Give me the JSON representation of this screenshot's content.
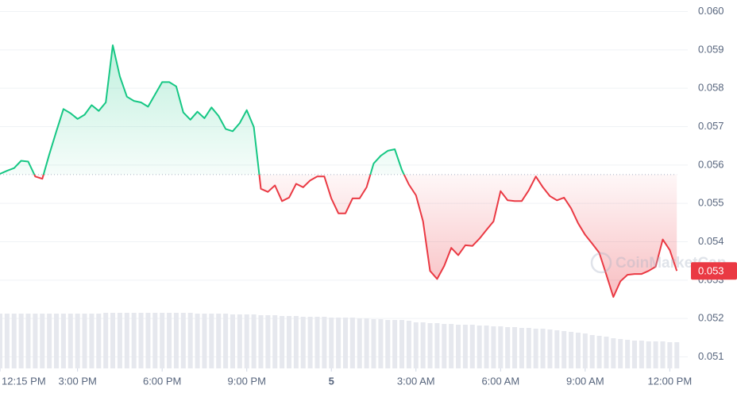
{
  "chart_data": {
    "type": "line",
    "x": [
      12.25,
      12.5,
      12.75,
      13,
      13.25,
      13.5,
      13.75,
      14,
      14.25,
      14.5,
      14.75,
      15,
      15.25,
      15.5,
      15.75,
      16,
      16.25,
      16.5,
      16.75,
      17,
      17.25,
      17.5,
      17.75,
      18,
      18.25,
      18.5,
      18.75,
      19,
      19.25,
      19.5,
      19.75,
      20,
      20.25,
      20.5,
      20.75,
      21,
      21.25,
      21.5,
      21.75,
      22,
      22.25,
      22.5,
      22.75,
      23,
      23.25,
      23.5,
      23.75,
      24,
      24.25,
      24.5,
      24.75,
      25,
      25.25,
      25.5,
      25.75,
      26,
      26.25,
      26.5,
      26.75,
      27,
      27.25,
      27.5,
      27.75,
      28,
      28.25,
      28.5,
      28.75,
      29,
      29.25,
      29.5,
      29.75,
      30,
      30.25,
      30.5,
      30.75,
      31,
      31.25,
      31.5,
      31.75,
      32,
      32.25,
      32.5,
      32.75,
      33,
      33.25,
      33.5,
      33.75,
      34,
      34.25,
      34.5,
      34.75,
      35,
      35.25,
      35.5,
      35.75,
      36,
      36.25
    ],
    "series": [
      {
        "name": "Price",
        "values": [
          0.05577,
          0.05585,
          0.05592,
          0.05611,
          0.05609,
          0.0557,
          0.05564,
          0.05628,
          0.05688,
          0.05746,
          0.05735,
          0.0572,
          0.05731,
          0.05756,
          0.05741,
          0.05763,
          0.05912,
          0.05831,
          0.05778,
          0.05767,
          0.05763,
          0.05752,
          0.05784,
          0.05816,
          0.05816,
          0.05805,
          0.05737,
          0.05718,
          0.05739,
          0.05722,
          0.0575,
          0.05728,
          0.05694,
          0.05688,
          0.05709,
          0.05743,
          0.05699,
          0.05538,
          0.0553,
          0.05547,
          0.05506,
          0.05515,
          0.05551,
          0.05542,
          0.0556,
          0.0557,
          0.0557,
          0.05513,
          0.05474,
          0.05474,
          0.05513,
          0.05513,
          0.05542,
          0.05604,
          0.05624,
          0.05637,
          0.05641,
          0.05587,
          0.05549,
          0.05521,
          0.05453,
          0.05324,
          0.05303,
          0.05337,
          0.05384,
          0.05365,
          0.05391,
          0.05389,
          0.05408,
          0.05431,
          0.05453,
          0.05532,
          0.05508,
          0.05506,
          0.05506,
          0.05534,
          0.0557,
          0.05542,
          0.05519,
          0.05508,
          0.05515,
          0.05487,
          0.05448,
          0.05418,
          0.05395,
          0.05371,
          0.05314,
          0.05256,
          0.05297,
          0.05314,
          0.05316,
          0.05316,
          0.05324,
          0.05335,
          0.05406,
          0.05378,
          0.05324
        ]
      },
      {
        "name": "Volume",
        "values": [
          69,
          69,
          69,
          69,
          69,
          69,
          69,
          69,
          69,
          69,
          69,
          69,
          69,
          69,
          69,
          70,
          70,
          70,
          70,
          70,
          70,
          70,
          70,
          70,
          70,
          70,
          70,
          70,
          69,
          69,
          69,
          69,
          69,
          68,
          68,
          68,
          68,
          67,
          67,
          67,
          66,
          66,
          66,
          65,
          65,
          65,
          65,
          64,
          64,
          64,
          64,
          63,
          63,
          62,
          62,
          61,
          61,
          61,
          60,
          58,
          58,
          57,
          57,
          56,
          56,
          55,
          55,
          55,
          54,
          54,
          53,
          53,
          52,
          52,
          51,
          51,
          50,
          50,
          49,
          48,
          47,
          46,
          45,
          44,
          42,
          41,
          40,
          38,
          37,
          36,
          35,
          35,
          34,
          34,
          34,
          33,
          33
        ]
      }
    ],
    "up_color": "#16c784",
    "down_color": "#ea3943",
    "reference_price": 0.05575,
    "current_price_label": "0.053",
    "watermark": "CoinMarketCap",
    "xlim": [
      12.25,
      36.75
    ],
    "xticks": [
      {
        "value": 12.25,
        "label": "12:15 PM"
      },
      {
        "value": 15,
        "label": "3:00 PM"
      },
      {
        "value": 18,
        "label": "6:00 PM"
      },
      {
        "value": 21,
        "label": "9:00 PM"
      },
      {
        "value": 24,
        "label": "5"
      },
      {
        "value": 27,
        "label": "3:00 AM"
      },
      {
        "value": 30,
        "label": "6:00 AM"
      },
      {
        "value": 33,
        "label": "9:00 AM"
      },
      {
        "value": 36,
        "label": "12:00 PM"
      }
    ],
    "ylim": [
      0.0507,
      0.0603
    ],
    "yticks": [
      {
        "value": 0.06,
        "label": "0.060"
      },
      0.059,
      0.058,
      0.057,
      0.056,
      0.055,
      0.054,
      0.053,
      0.052,
      0.051
    ],
    "grid": true
  }
}
